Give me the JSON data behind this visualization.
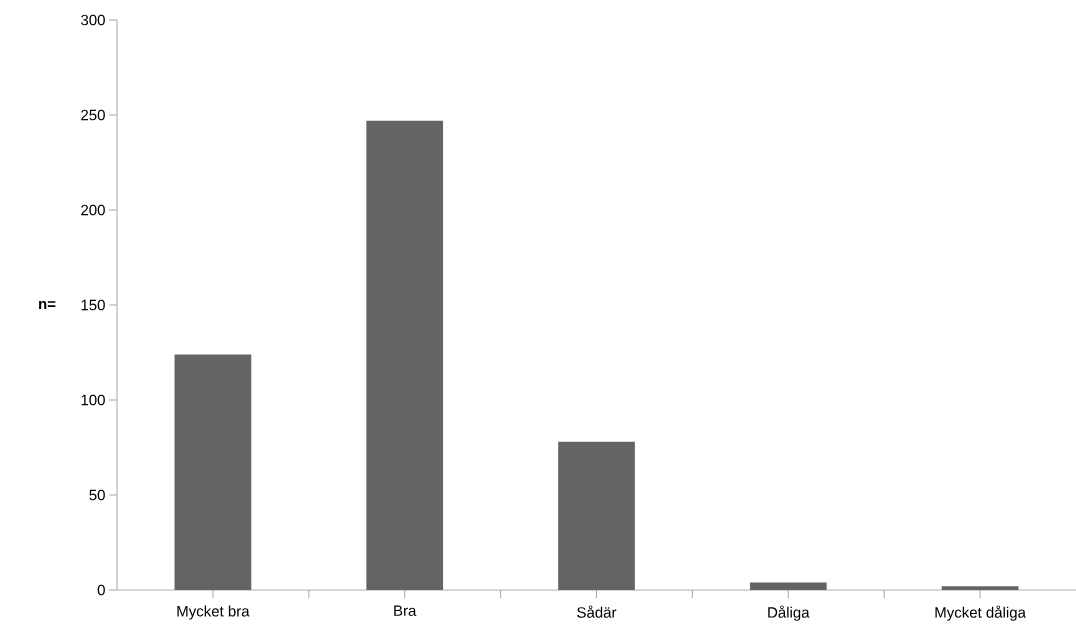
{
  "chart_data": {
    "type": "bar",
    "ylabel": "n=",
    "categories": [
      "Mycket bra",
      "Bra",
      "Sådär",
      "Dåliga",
      "Mycket dåliga"
    ],
    "values": [
      124,
      247,
      78,
      4,
      2
    ],
    "color": "#646464",
    "ylim": [
      0,
      300
    ],
    "yticks": [
      0,
      50,
      100,
      150,
      200,
      250,
      300
    ],
    "grid": false
  }
}
